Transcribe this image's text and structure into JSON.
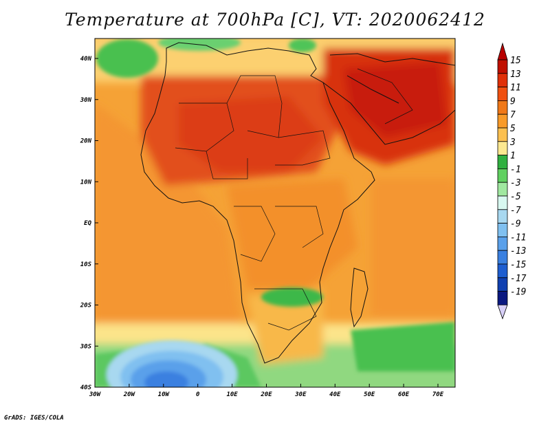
{
  "title": "Temperature at 700hPa [C], VT: 2020062412",
  "credit": "GrADS: IGES/COLA",
  "map": {
    "region": "Africa and Middle East",
    "lon_range": [
      -30,
      75
    ],
    "lat_range": [
      -40,
      45
    ],
    "lat_ticks": [
      "40N",
      "30N",
      "20N",
      "10N",
      "EQ",
      "10S",
      "20S",
      "30S",
      "40S"
    ],
    "lon_ticks": [
      "30W",
      "20W",
      "10W",
      "0",
      "10E",
      "20E",
      "30E",
      "40E",
      "50E",
      "60E",
      "70E"
    ]
  },
  "colorbar": {
    "labels": [
      "15",
      "13",
      "11",
      "9",
      "7",
      "5",
      "3",
      "1",
      "-1",
      "-3",
      "-5",
      "-7",
      "-9",
      "-11",
      "-13",
      "-15",
      "-17",
      "-19"
    ],
    "colors": [
      "#c01000",
      "#e03008",
      "#f05010",
      "#f07818",
      "#f89a28",
      "#fcc050",
      "#fce890",
      "#30b040",
      "#60d060",
      "#a0e8a0",
      "#d8f8f0",
      "#a8d8f0",
      "#80c0f0",
      "#5aa0ea",
      "#3a80e0",
      "#1e5ed0",
      "#1040b0",
      "#0a1880"
    ],
    "top_arrow_color": "#b80000",
    "bottom_arrow_color": "#d8d0f8"
  }
}
